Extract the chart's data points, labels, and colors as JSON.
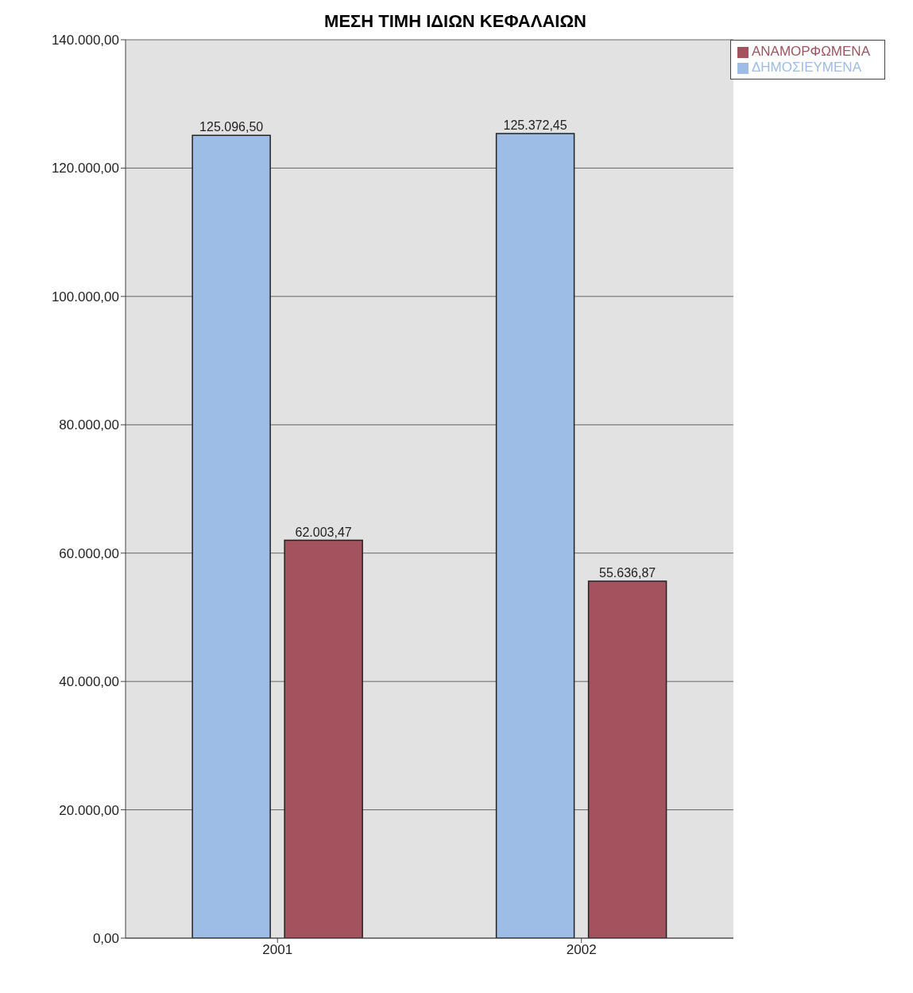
{
  "chart_data": {
    "type": "bar",
    "title": "ΜΕΣΗ ΤΙΜΗ ΙΔΙΩΝ ΚΕΦΑΛΑΙΩΝ",
    "categories": [
      "2001",
      "2002"
    ],
    "series": [
      {
        "name": "ΔΗΜΟΣΙΕΥΜΕΝΑ",
        "color": "#9dbce6",
        "values": [
          125096.5,
          125372.45
        ],
        "value_labels": [
          "125.096,50",
          "125.372,45"
        ]
      },
      {
        "name": "ΑΝΑΜΟΡΦΩΜΕΝΑ",
        "color": "#a3525e",
        "values": [
          62003.47,
          55636.87
        ],
        "value_labels": [
          "62.003,47",
          "55.636,87"
        ]
      }
    ],
    "ylim": [
      0,
      140000
    ],
    "yticks": [
      {
        "value": 0,
        "label": "0,00"
      },
      {
        "value": 20000,
        "label": "20.000,00"
      },
      {
        "value": 40000,
        "label": "40.000,00"
      },
      {
        "value": 60000,
        "label": "60.000,00"
      },
      {
        "value": 80000,
        "label": "80.000,00"
      },
      {
        "value": 100000,
        "label": "100.000,00"
      },
      {
        "value": 120000,
        "label": "120.000,00"
      },
      {
        "value": 140000,
        "label": "140.000,00"
      }
    ],
    "grid": "y",
    "legend": "top right"
  }
}
